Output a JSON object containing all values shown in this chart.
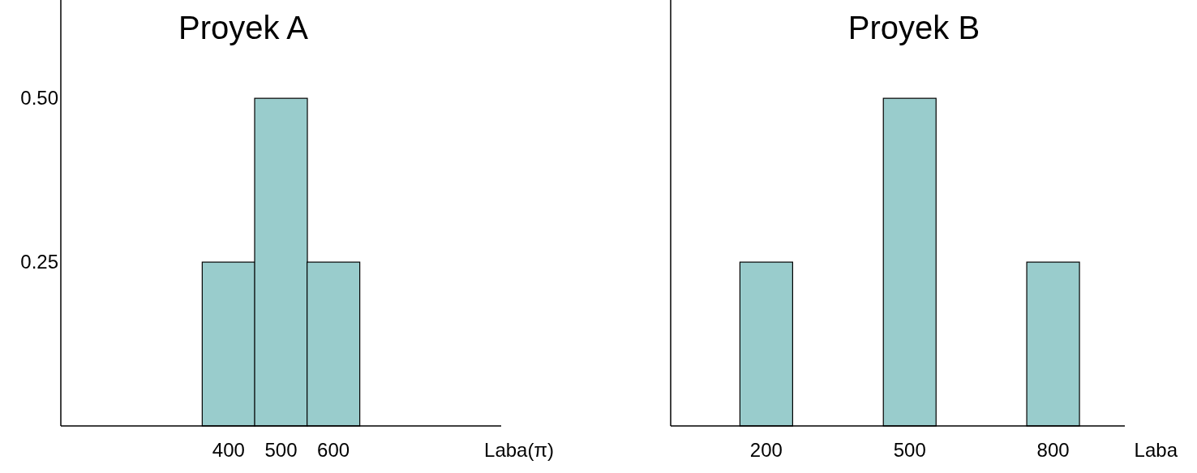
{
  "chart_data": [
    {
      "type": "bar",
      "title": "Proyek A",
      "xlabel": "Laba(π)",
      "x": [
        400,
        500,
        600
      ],
      "values": [
        0.25,
        0.5,
        0.25
      ],
      "color": "#99cccc",
      "xlim": [
        80,
        920
      ],
      "xticks": [
        400,
        500,
        600
      ],
      "ylim": [
        0,
        0.65
      ],
      "yticks": [
        {
          "value": 0.25,
          "label": "0.25"
        },
        {
          "value": 0.5,
          "label": "0.50"
        }
      ]
    },
    {
      "type": "bar",
      "title": "Proyek B",
      "xlabel": "Laba",
      "x": [
        200,
        500,
        800
      ],
      "values": [
        0.25,
        0.5,
        0.25
      ],
      "color": "#99cccc",
      "xlim": [
        0,
        950
      ],
      "xticks": [
        200,
        500,
        800
      ],
      "ylim": [
        0,
        0.65
      ],
      "tick_labels": "x"
    }
  ]
}
